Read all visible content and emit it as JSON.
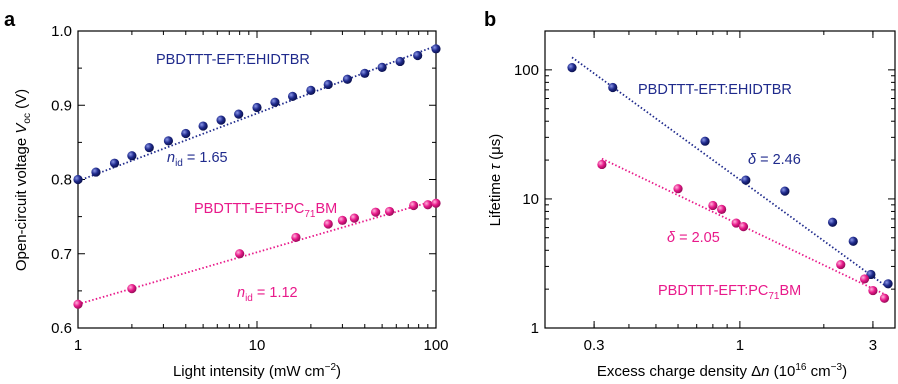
{
  "colors": {
    "blue": "#1f2a8c",
    "pink": "#e8198a"
  },
  "chart_data": [
    {
      "type": "scatter",
      "panel_label": "a",
      "xlabel": "Light intensity (mW cm",
      "xlabel_sup": "−2",
      "xlabel_end": ")",
      "ylabel": "Open-circuit voltage ",
      "ylabel_var": "V",
      "ylabel_sub": "oc",
      "ylabel_end": " (V)",
      "xscale": "log",
      "xlim": [
        1,
        100
      ],
      "ylim": [
        0.6,
        1.0
      ],
      "x_ticks": [
        1,
        10,
        100
      ],
      "x_tick_labels": [
        "1",
        "10",
        "100"
      ],
      "y_ticks": [
        0.6,
        0.7,
        0.8,
        0.9,
        1.0
      ],
      "y_tick_labels": [
        "0.6",
        "0.7",
        "0.8",
        "0.9",
        "1.0"
      ],
      "series": [
        {
          "name": "PBDTTT-EFT:EHIDTBR",
          "color": "#1f2a8c",
          "x": [
            1.0,
            1.26,
            1.6,
            2.0,
            2.5,
            3.2,
            4.0,
            5.0,
            6.3,
            7.9,
            10,
            12.6,
            15.8,
            20,
            25,
            32,
            40,
            50,
            63,
            79,
            100
          ],
          "y": [
            0.8,
            0.81,
            0.822,
            0.832,
            0.843,
            0.852,
            0.862,
            0.872,
            0.88,
            0.888,
            0.897,
            0.904,
            0.912,
            0.92,
            0.928,
            0.935,
            0.943,
            0.951,
            0.959,
            0.967,
            0.976
          ],
          "fit": {
            "x": [
              1,
              100
            ],
            "y": [
              0.798,
              0.98
            ]
          },
          "annotation": {
            "prefix": "n",
            "sub": "id",
            "text": " = 1.65"
          }
        },
        {
          "name": "PBDTTT-EFT:PC",
          "name_sub": "71",
          "name_end": "BM",
          "color": "#e8198a",
          "x": [
            1.0,
            2.0,
            8.0,
            16.5,
            25,
            30,
            35,
            46,
            55,
            75,
            90,
            100
          ],
          "y": [
            0.632,
            0.653,
            0.7,
            0.722,
            0.74,
            0.745,
            0.748,
            0.756,
            0.757,
            0.765,
            0.766,
            0.768
          ],
          "fit": {
            "x": [
              1,
              100
            ],
            "y": [
              0.632,
              0.772
            ]
          },
          "annotation": {
            "prefix": "n",
            "sub": "id",
            "text": " = 1.12"
          }
        }
      ]
    },
    {
      "type": "scatter",
      "panel_label": "b",
      "xlabel": "Excess charge density Δ",
      "xlabel_var": "n",
      "xlabel_mid": " (10",
      "xlabel_sup1": "16",
      "xlabel_mid2": " cm",
      "xlabel_sup2": "−3",
      "xlabel_end": ")",
      "ylabel": "Lifetime ",
      "ylabel_var": "τ",
      "ylabel_end": " (μs)",
      "xscale": "log",
      "yscale": "log",
      "xlim": [
        0.2,
        3.6
      ],
      "ylim": [
        1,
        200
      ],
      "x_ticks": [
        0.3,
        1,
        3
      ],
      "x_tick_labels": [
        "0.3",
        "1",
        "3"
      ],
      "y_ticks": [
        1,
        10,
        100
      ],
      "y_tick_labels": [
        "1",
        "10",
        "100"
      ],
      "series": [
        {
          "name": "PBDTTT-EFT:EHIDTBR",
          "color": "#1f2a8c",
          "x": [
            0.25,
            0.35,
            0.75,
            1.05,
            1.45,
            2.15,
            2.55,
            2.95,
            3.4
          ],
          "y": [
            104,
            73,
            28,
            14,
            11.5,
            6.6,
            4.7,
            2.6,
            2.2
          ],
          "fit": {
            "x": [
              0.25,
              3.35
            ],
            "y": [
              125,
              2.1
            ]
          },
          "annotation": {
            "prefix": "δ",
            "text": " = 2.46"
          }
        },
        {
          "name": "PBDTTT-EFT:PC",
          "name_sub": "71",
          "name_end": "BM",
          "color": "#e8198a",
          "x": [
            0.32,
            0.6,
            0.8,
            0.86,
            0.97,
            1.03,
            2.3,
            2.8,
            3.0,
            3.3
          ],
          "y": [
            18.5,
            12,
            8.9,
            8.3,
            6.5,
            6.1,
            3.1,
            2.4,
            1.95,
            1.7
          ],
          "fit": {
            "x": [
              0.32,
              3.35
            ],
            "y": [
              20.5,
              1.8
            ]
          },
          "annotation": {
            "prefix": "δ",
            "text": " = 2.05"
          }
        }
      ]
    }
  ]
}
